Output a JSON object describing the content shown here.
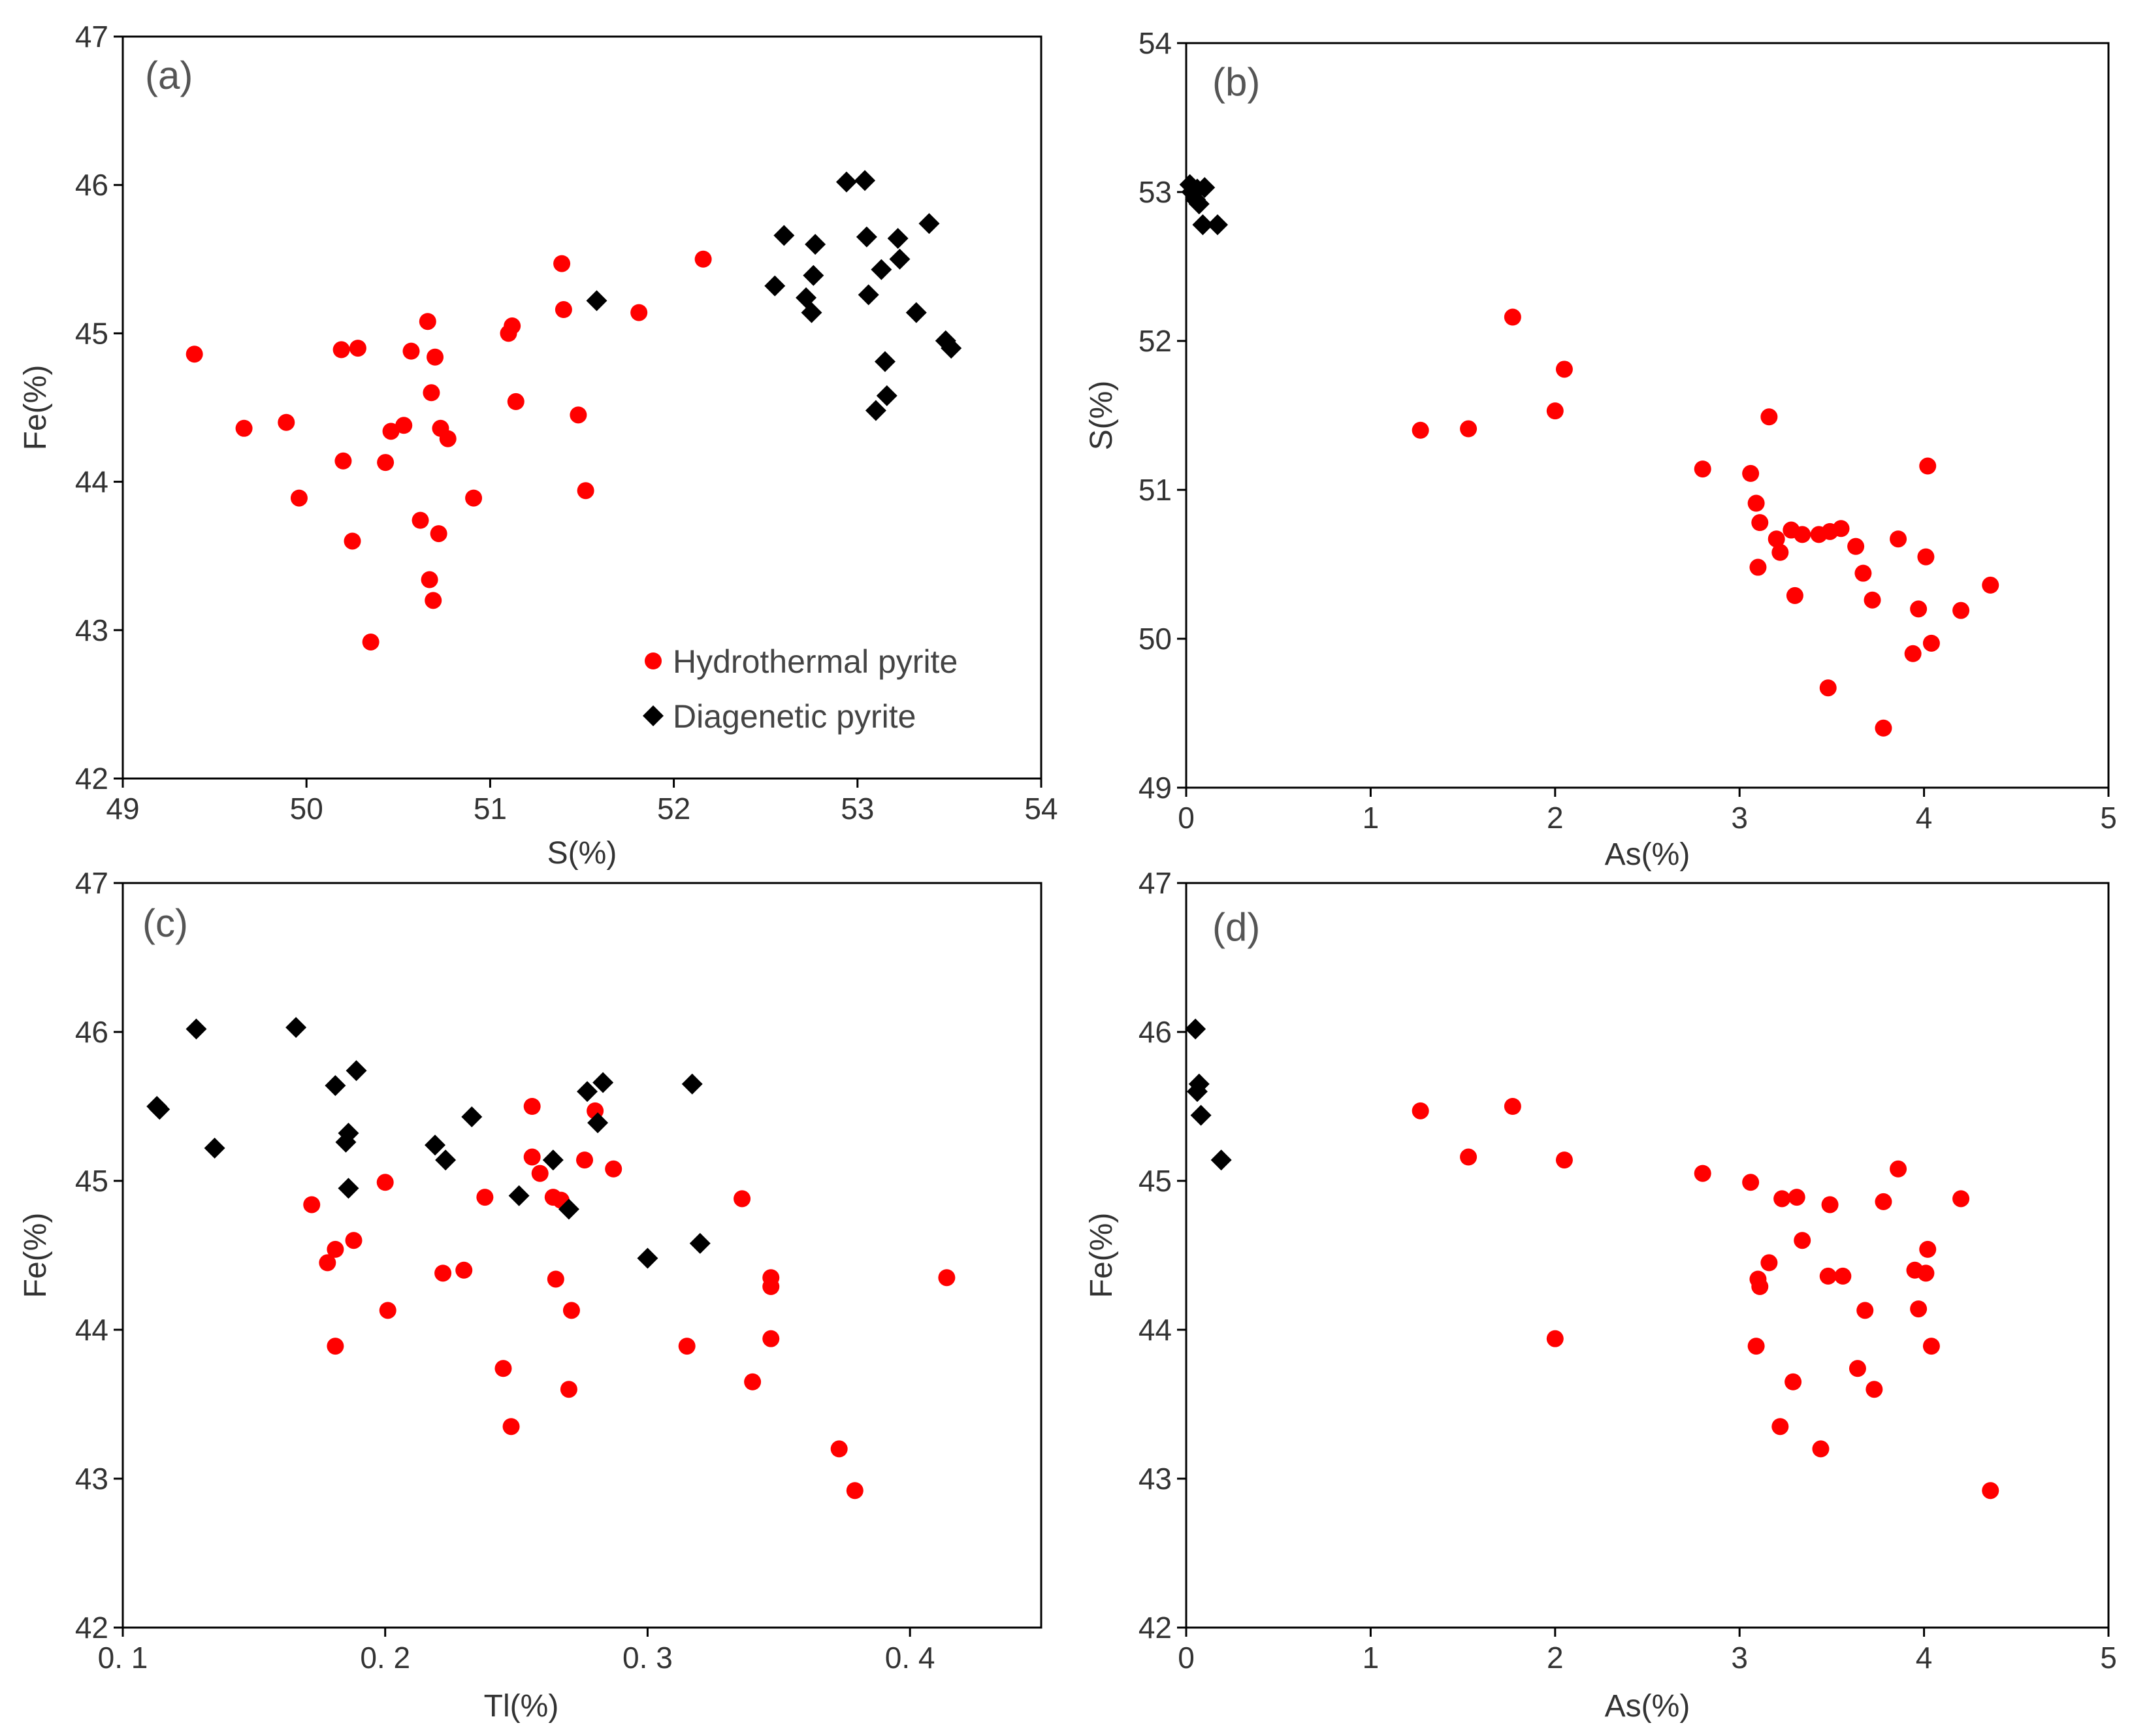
{
  "colors": {
    "hydrothermal": "#ff0000",
    "diagenetic": "#000000"
  },
  "chart_data": [
    {
      "id": "a",
      "type": "scatter",
      "panel_label": "(a)",
      "xlabel": "S(%)",
      "ylabel": "Fe(%)",
      "xlim": [
        49,
        54
      ],
      "ylim": [
        42,
        47
      ],
      "xticks": [
        49,
        50,
        51,
        52,
        53,
        54
      ],
      "xtick_labels": [
        "49",
        "50",
        "51",
        "52",
        "53",
        "54"
      ],
      "yticks": [
        42,
        43,
        44,
        45,
        46,
        47
      ],
      "ytick_labels": [
        "42",
        "43",
        "44",
        "45",
        "46",
        "47"
      ],
      "legend": {
        "position": "bottom-right",
        "entries": [
          "Hydrothermal pyrite",
          "Diagenetic pyrite"
        ]
      },
      "series": [
        {
          "name": "Hydrothermal pyrite",
          "marker": "circle",
          "color": "#ff0000",
          "points": [
            [
              49.39,
              44.86
            ],
            [
              49.66,
              44.36
            ],
            [
              49.89,
              44.4
            ],
            [
              49.96,
              43.89
            ],
            [
              50.19,
              44.89
            ],
            [
              50.2,
              44.14
            ],
            [
              50.25,
              43.6
            ],
            [
              50.28,
              44.9
            ],
            [
              50.35,
              42.92
            ],
            [
              50.43,
              44.13
            ],
            [
              50.46,
              44.34
            ],
            [
              50.53,
              44.38
            ],
            [
              50.57,
              44.88
            ],
            [
              50.62,
              43.74
            ],
            [
              50.66,
              45.08
            ],
            [
              50.67,
              43.34
            ],
            [
              50.68,
              44.6
            ],
            [
              50.69,
              43.2
            ],
            [
              50.7,
              44.84
            ],
            [
              50.72,
              43.65
            ],
            [
              50.73,
              44.36
            ],
            [
              50.77,
              44.29
            ],
            [
              50.91,
              43.89
            ],
            [
              51.1,
              45.0
            ],
            [
              51.12,
              45.05
            ],
            [
              51.14,
              44.54
            ],
            [
              51.39,
              45.47
            ],
            [
              51.4,
              45.16
            ],
            [
              51.48,
              44.45
            ],
            [
              51.52,
              43.94
            ],
            [
              51.81,
              45.14
            ],
            [
              52.16,
              45.5
            ]
          ]
        },
        {
          "name": "Diagenetic pyrite",
          "marker": "diamond",
          "color": "#000000",
          "points": [
            [
              51.58,
              45.22
            ],
            [
              52.55,
              45.32
            ],
            [
              52.6,
              45.66
            ],
            [
              52.72,
              45.24
            ],
            [
              52.75,
              45.14
            ],
            [
              52.76,
              45.39
            ],
            [
              52.77,
              45.6
            ],
            [
              52.94,
              46.02
            ],
            [
              53.04,
              46.03
            ],
            [
              53.05,
              45.65
            ],
            [
              53.06,
              45.26
            ],
            [
              53.1,
              44.48
            ],
            [
              53.13,
              45.43
            ],
            [
              53.15,
              44.81
            ],
            [
              53.16,
              44.58
            ],
            [
              53.22,
              45.64
            ],
            [
              53.23,
              45.5
            ],
            [
              53.32,
              45.14
            ],
            [
              53.39,
              45.74
            ],
            [
              53.48,
              44.95
            ],
            [
              53.51,
              44.9
            ]
          ]
        }
      ]
    },
    {
      "id": "b",
      "type": "scatter",
      "panel_label": "(b)",
      "xlabel": "As(%)",
      "ylabel": "S(%)",
      "xlim": [
        0,
        5
      ],
      "ylim": [
        49,
        54
      ],
      "xticks": [
        0,
        1,
        2,
        3,
        4,
        5
      ],
      "xtick_labels": [
        "0",
        "1",
        "2",
        "3",
        "4",
        "5"
      ],
      "yticks": [
        49,
        50,
        51,
        52,
        53,
        54
      ],
      "ytick_labels": [
        "49",
        "50",
        "51",
        "52",
        "53",
        "54"
      ],
      "series": [
        {
          "name": "Hydrothermal pyrite",
          "marker": "circle",
          "color": "#ff0000",
          "points": [
            [
              1.27,
              51.4
            ],
            [
              1.53,
              51.41
            ],
            [
              1.77,
              52.16
            ],
            [
              2.0,
              51.53
            ],
            [
              2.05,
              51.81
            ],
            [
              2.8,
              51.14
            ],
            [
              3.06,
              51.11
            ],
            [
              3.09,
              50.91
            ],
            [
              3.1,
              50.48
            ],
            [
              3.11,
              50.78
            ],
            [
              3.16,
              51.49
            ],
            [
              3.2,
              50.67
            ],
            [
              3.22,
              50.58
            ],
            [
              3.28,
              50.73
            ],
            [
              3.3,
              50.29
            ],
            [
              3.34,
              50.7
            ],
            [
              3.43,
              50.7
            ],
            [
              3.48,
              49.67
            ],
            [
              3.49,
              50.72
            ],
            [
              3.55,
              50.74
            ],
            [
              3.63,
              50.62
            ],
            [
              3.67,
              50.44
            ],
            [
              3.72,
              50.26
            ],
            [
              3.78,
              49.4
            ],
            [
              3.86,
              50.67
            ],
            [
              3.94,
              49.9
            ],
            [
              3.97,
              50.2
            ],
            [
              4.01,
              50.55
            ],
            [
              4.02,
              51.16
            ],
            [
              4.04,
              49.97
            ],
            [
              4.2,
              50.19
            ],
            [
              4.36,
              50.36
            ]
          ]
        },
        {
          "name": "Diagenetic pyrite",
          "marker": "diamond",
          "color": "#000000",
          "points": [
            [
              0.02,
              53.05
            ],
            [
              0.03,
              53.0
            ],
            [
              0.05,
              52.95
            ],
            [
              0.06,
              53.02
            ],
            [
              0.07,
              52.92
            ],
            [
              0.09,
              52.78
            ],
            [
              0.1,
              53.03
            ],
            [
              0.17,
              52.78
            ]
          ]
        }
      ]
    },
    {
      "id": "c",
      "type": "scatter",
      "panel_label": "(c)",
      "xlabel": "Tl(%)",
      "ylabel": "Fe(%)",
      "xlim": [
        0.1,
        0.45
      ],
      "ylim": [
        42,
        47
      ],
      "xticks": [
        0.1,
        0.2,
        0.3,
        0.4
      ],
      "xtick_labels": [
        "0. 1",
        "0. 2",
        "0. 3",
        "0. 4"
      ],
      "yticks": [
        42,
        43,
        44,
        45,
        46,
        47
      ],
      "ytick_labels": [
        "42",
        "43",
        "44",
        "45",
        "46",
        "47"
      ],
      "series": [
        {
          "name": "Hydrothermal pyrite",
          "marker": "circle",
          "color": "#ff0000",
          "points": [
            [
              0.172,
              44.84
            ],
            [
              0.178,
              44.45
            ],
            [
              0.181,
              43.89
            ],
            [
              0.181,
              44.54
            ],
            [
              0.188,
              44.6
            ],
            [
              0.2,
              44.99
            ],
            [
              0.201,
              44.13
            ],
            [
              0.222,
              44.38
            ],
            [
              0.23,
              44.4
            ],
            [
              0.238,
              44.89
            ],
            [
              0.245,
              43.74
            ],
            [
              0.248,
              43.35
            ],
            [
              0.256,
              45.16
            ],
            [
              0.256,
              45.5
            ],
            [
              0.259,
              45.05
            ],
            [
              0.264,
              44.89
            ],
            [
              0.265,
              44.34
            ],
            [
              0.267,
              44.87
            ],
            [
              0.27,
              43.6
            ],
            [
              0.271,
              44.13
            ],
            [
              0.276,
              45.14
            ],
            [
              0.28,
              45.47
            ],
            [
              0.287,
              45.08
            ],
            [
              0.315,
              43.89
            ],
            [
              0.336,
              44.88
            ],
            [
              0.34,
              43.65
            ],
            [
              0.347,
              43.94
            ],
            [
              0.347,
              44.35
            ],
            [
              0.347,
              44.29
            ],
            [
              0.373,
              43.2
            ],
            [
              0.379,
              42.92
            ],
            [
              0.414,
              44.35
            ]
          ]
        },
        {
          "name": "Diagenetic pyrite",
          "marker": "diamond",
          "color": "#000000",
          "points": [
            [
              0.113,
              45.5
            ],
            [
              0.114,
              45.48
            ],
            [
              0.128,
              46.02
            ],
            [
              0.135,
              45.22
            ],
            [
              0.166,
              46.03
            ],
            [
              0.181,
              45.64
            ],
            [
              0.185,
              45.26
            ],
            [
              0.186,
              45.32
            ],
            [
              0.186,
              44.95
            ],
            [
              0.189,
              45.74
            ],
            [
              0.219,
              45.24
            ],
            [
              0.223,
              45.14
            ],
            [
              0.233,
              45.43
            ],
            [
              0.251,
              44.9
            ],
            [
              0.264,
              45.14
            ],
            [
              0.27,
              44.81
            ],
            [
              0.277,
              45.6
            ],
            [
              0.281,
              45.39
            ],
            [
              0.283,
              45.66
            ],
            [
              0.3,
              44.48
            ],
            [
              0.317,
              45.65
            ],
            [
              0.32,
              44.58
            ]
          ]
        }
      ]
    },
    {
      "id": "d",
      "type": "scatter",
      "panel_label": "(d)",
      "xlabel": "As(%)",
      "ylabel": "Fe(%)",
      "xlim": [
        0,
        5
      ],
      "ylim": [
        42,
        47
      ],
      "xticks": [
        0,
        1,
        2,
        3,
        4,
        5
      ],
      "xtick_labels": [
        "0",
        "1",
        "2",
        "3",
        "4",
        "5"
      ],
      "yticks": [
        42,
        43,
        44,
        45,
        46,
        47
      ],
      "ytick_labels": [
        "42",
        "43",
        "44",
        "45",
        "46",
        "47"
      ],
      "series": [
        {
          "name": "Hydrothermal pyrite",
          "marker": "circle",
          "color": "#ff0000",
          "points": [
            [
              1.27,
              45.47
            ],
            [
              1.53,
              45.16
            ],
            [
              1.77,
              45.5
            ],
            [
              2.0,
              43.94
            ],
            [
              2.05,
              45.14
            ],
            [
              2.8,
              45.05
            ],
            [
              3.06,
              44.99
            ],
            [
              3.09,
              43.89
            ],
            [
              3.1,
              44.34
            ],
            [
              3.11,
              44.29
            ],
            [
              3.16,
              44.45
            ],
            [
              3.22,
              43.35
            ],
            [
              3.23,
              44.88
            ],
            [
              3.29,
              43.65
            ],
            [
              3.31,
              44.89
            ],
            [
              3.34,
              44.6
            ],
            [
              3.44,
              43.2
            ],
            [
              3.48,
              44.36
            ],
            [
              3.49,
              44.84
            ],
            [
              3.56,
              44.36
            ],
            [
              3.64,
              43.74
            ],
            [
              3.68,
              44.13
            ],
            [
              3.73,
              43.6
            ],
            [
              3.78,
              44.86
            ],
            [
              3.86,
              45.08
            ],
            [
              3.95,
              44.4
            ],
            [
              3.97,
              44.14
            ],
            [
              4.01,
              44.38
            ],
            [
              4.02,
              44.54
            ],
            [
              4.04,
              43.89
            ],
            [
              4.2,
              44.88
            ],
            [
              4.36,
              42.92
            ]
          ]
        },
        {
          "name": "Diagenetic pyrite",
          "marker": "diamond",
          "color": "#000000",
          "points": [
            [
              0.05,
              46.02
            ],
            [
              0.06,
              45.6
            ],
            [
              0.07,
              45.65
            ],
            [
              0.08,
              45.44
            ],
            [
              0.19,
              45.14
            ]
          ]
        }
      ]
    }
  ]
}
